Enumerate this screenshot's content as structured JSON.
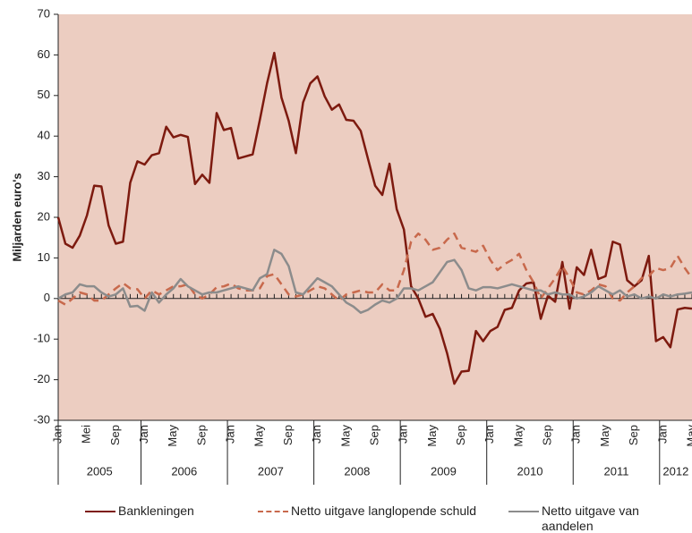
{
  "chart_data": {
    "type": "line",
    "y_label": "Miljarden euro's",
    "categories": [
      "Jan",
      null,
      null,
      null,
      "Mei",
      null,
      null,
      null,
      "Sep",
      null,
      null,
      null,
      "Jan",
      null,
      null,
      null,
      "May",
      null,
      null,
      null,
      "Sep",
      null,
      null,
      null,
      "Jan",
      null,
      null,
      null,
      "May",
      null,
      null,
      null,
      "Sep",
      null,
      null,
      null,
      "Jan",
      null,
      null,
      null,
      "May",
      null,
      null,
      null,
      "Sep",
      null,
      null,
      null,
      "Jan",
      null,
      null,
      null,
      "May",
      null,
      null,
      null,
      "Sep",
      null,
      null,
      null,
      "Jan",
      null,
      null,
      null,
      "May",
      null,
      null,
      null,
      "Sep",
      null,
      null,
      null,
      "Jan",
      null,
      null,
      null,
      "May",
      null,
      null,
      null,
      "Sep",
      null,
      null,
      null,
      "Jan",
      null,
      null,
      null,
      "May"
    ],
    "years": [
      "2005",
      "2006",
      "2007",
      "2008",
      "2009",
      "2010",
      "2011",
      "2012"
    ],
    "ylim": [
      -30,
      70
    ],
    "yticks": [
      -30,
      -20,
      -10,
      0,
      10,
      20,
      30,
      40,
      50,
      60,
      70
    ],
    "background": "#eccdc1",
    "series": [
      {
        "name": "Bankleningen",
        "color": "#7d1a0f",
        "style": "solid",
        "values": [
          20,
          13.5,
          12.5,
          15.5,
          20.5,
          27.8,
          27.6,
          18,
          13.5,
          14,
          28.5,
          33.8,
          33,
          35.3,
          35.8,
          42.3,
          39.7,
          40.3,
          39.8,
          28.2,
          30.5,
          28.5,
          45.7,
          41.5,
          42,
          34.5,
          35,
          35.5,
          44,
          53,
          60.5,
          49.5,
          43.8,
          35.8,
          48.3,
          53,
          54.7,
          49.8,
          46.5,
          47.8,
          44,
          43.8,
          41.3,
          34.5,
          27.8,
          25.5,
          33.2,
          22,
          17,
          3,
          0,
          -4.5,
          -3.8,
          -7.5,
          -13.5,
          -21,
          -18,
          -17.8,
          -8,
          -10.5,
          -8,
          -7,
          -2.8,
          -2.3,
          2,
          3.7,
          4,
          -5,
          0.7,
          -0.8,
          9,
          -2.5,
          7.7,
          5.8,
          12,
          4.8,
          5.5,
          14,
          13.3,
          4.5,
          3,
          4.5,
          10.5,
          -10.5,
          -9.5,
          -12,
          -2.7,
          -2.3,
          -2.5
        ]
      },
      {
        "name": "Netto uitgave langlopende schuld",
        "color": "#c8694c",
        "style": "dashed",
        "values": [
          -0.5,
          -1.5,
          0,
          1.5,
          1,
          -0.5,
          -0.5,
          1,
          2.5,
          3.8,
          2.5,
          2.3,
          0,
          2,
          1,
          2,
          3,
          3,
          3.5,
          1,
          0,
          1,
          2.8,
          3,
          3.7,
          2.5,
          2,
          2,
          2.5,
          5.5,
          6,
          3.5,
          1,
          0.5,
          1,
          2,
          3,
          2.5,
          1,
          -0.5,
          1,
          1.5,
          2,
          1.5,
          1.5,
          3.5,
          2,
          2,
          7,
          14,
          16,
          14.5,
          12,
          12.5,
          14.5,
          16,
          12.5,
          12,
          11.5,
          13,
          9.5,
          7,
          8.5,
          9.5,
          11,
          7,
          4,
          0,
          2.5,
          5,
          8,
          5,
          1.5,
          1,
          2,
          3.5,
          3,
          0,
          -0.5,
          1.5,
          3,
          5,
          5.5,
          7.5,
          7,
          7.5,
          10.5,
          7.5,
          5
        ]
      },
      {
        "name": "Netto uitgave van aandelen",
        "color": "#8c8c8c",
        "style": "solid",
        "values": [
          0,
          1,
          1.5,
          3.5,
          3,
          3,
          1.5,
          0.5,
          1,
          2.5,
          -2,
          -1.8,
          -3,
          1.5,
          -1,
          1,
          2.5,
          4.8,
          3,
          2,
          1,
          1.5,
          1.5,
          2,
          2.5,
          3,
          2.5,
          2,
          5,
          6,
          12,
          11,
          8,
          1.5,
          1,
          3,
          5,
          4,
          3,
          1,
          -1,
          -2,
          -3.5,
          -2.8,
          -1.5,
          -0.5,
          -1,
          0,
          2.5,
          2.5,
          2,
          3,
          4,
          6.5,
          9,
          9.5,
          7,
          2.5,
          2,
          2.8,
          2.8,
          2.5,
          3,
          3.5,
          3,
          2.5,
          2,
          2,
          1,
          1.5,
          1,
          1,
          0,
          0.5,
          1.5,
          3,
          2,
          1,
          2,
          0.5,
          1,
          0,
          0.5,
          0,
          1,
          0.5,
          1,
          1.2,
          1.5
        ]
      }
    ]
  }
}
